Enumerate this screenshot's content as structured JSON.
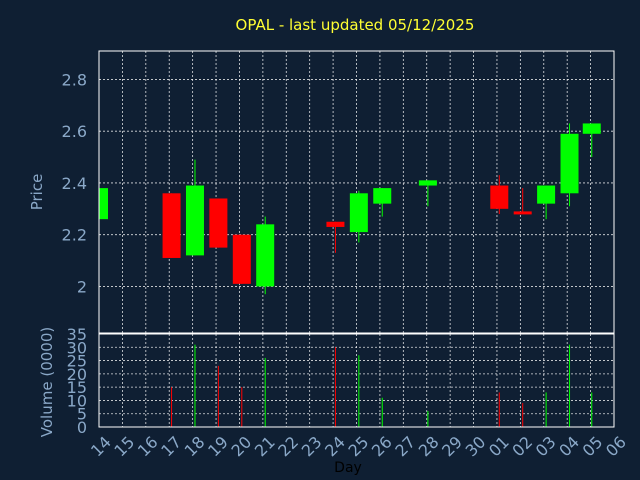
{
  "chart_data": {
    "type": "candlestick",
    "title": "OPAL - last updated 05/12/2025",
    "xlabel": "Day",
    "price_ylabel": "Price",
    "volume_ylabel": "Volume (0000)",
    "x_ticks": [
      "14",
      "15",
      "16",
      "17",
      "18",
      "19",
      "20",
      "21",
      "22",
      "23",
      "24",
      "25",
      "26",
      "27",
      "28",
      "29",
      "30",
      "01",
      "02",
      "03",
      "04",
      "05",
      "06"
    ],
    "price_ticks": [
      "2",
      "2.2",
      "2.4",
      "2.6",
      "2.8"
    ],
    "price_tick_values": [
      2.0,
      2.2,
      2.4,
      2.6,
      2.8
    ],
    "price_ylim": [
      1.82,
      2.91
    ],
    "volume_ticks": [
      "0",
      "5",
      "10",
      "15",
      "20",
      "25",
      "30",
      "35"
    ],
    "volume_tick_values": [
      0,
      5,
      10,
      15,
      20,
      25,
      30,
      35
    ],
    "volume_ylim": [
      0,
      35
    ],
    "x_range": [
      0,
      22
    ],
    "colors": {
      "up": "#00ff00",
      "down": "#ff0000",
      "title": "#ffff33",
      "tick": "#8aa8c8",
      "background": "#0f1f33"
    },
    "candles": [
      {
        "x": 0,
        "open": 2.26,
        "high": 2.38,
        "low": 2.26,
        "close": 2.38,
        "volume": 0
      },
      {
        "x": 3.1,
        "open": 2.36,
        "high": 2.36,
        "low": 2.11,
        "close": 2.11,
        "volume": 15
      },
      {
        "x": 4.1,
        "open": 2.12,
        "high": 2.49,
        "low": 2.12,
        "close": 2.39,
        "volume": 31
      },
      {
        "x": 5.1,
        "open": 2.34,
        "high": 2.34,
        "low": 2.15,
        "close": 2.15,
        "volume": 23
      },
      {
        "x": 6.1,
        "open": 2.2,
        "high": 2.2,
        "low": 2.01,
        "close": 2.01,
        "volume": 15
      },
      {
        "x": 7.1,
        "open": 2.0,
        "high": 2.27,
        "low": 1.97,
        "close": 2.24,
        "volume": 26
      },
      {
        "x": 10.1,
        "open": 2.25,
        "high": 2.25,
        "low": 2.13,
        "close": 2.23,
        "volume": 30
      },
      {
        "x": 11.1,
        "open": 2.21,
        "high": 2.37,
        "low": 2.17,
        "close": 2.36,
        "volume": 27
      },
      {
        "x": 12.1,
        "open": 2.32,
        "high": 2.38,
        "low": 2.27,
        "close": 2.38,
        "volume": 11
      },
      {
        "x": 14.05,
        "open": 2.39,
        "high": 2.41,
        "low": 2.31,
        "close": 2.41,
        "volume": 6
      },
      {
        "x": 17.1,
        "open": 2.39,
        "high": 2.43,
        "low": 2.28,
        "close": 2.3,
        "volume": 13
      },
      {
        "x": 18.1,
        "open": 2.29,
        "high": 2.38,
        "low": 2.28,
        "close": 2.28,
        "volume": 9
      },
      {
        "x": 19.1,
        "open": 2.32,
        "high": 2.39,
        "low": 2.26,
        "close": 2.39,
        "volume": 13
      },
      {
        "x": 20.1,
        "open": 2.36,
        "high": 2.63,
        "low": 2.31,
        "close": 2.59,
        "volume": 31
      },
      {
        "x": 21.05,
        "open": 2.59,
        "high": 2.63,
        "low": 2.5,
        "close": 2.63,
        "volume": 13
      }
    ]
  }
}
